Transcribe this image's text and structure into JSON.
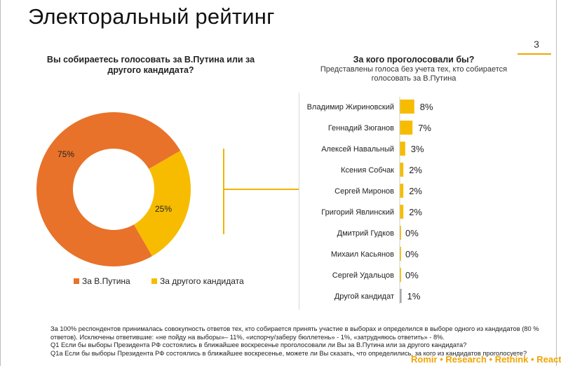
{
  "title": "Электоральный рейтинг",
  "page_number": "3",
  "colors": {
    "orange": "#e8722a",
    "yellow": "#f7bc00",
    "grey": "#9e9e9e",
    "accent": "#f0a500"
  },
  "left_question": "Вы собираетесь голосовать за В.Путина или за другого кандидата?",
  "right_question": {
    "title": "За кого проголосовали бы?",
    "subtitle": "Представлены голоса без учета тех, кто собирается голосовать за В.Путина"
  },
  "footnotes": [
    "За 100% респондентов принималась совокупность ответов тех, кто собирается принять участие в выборах и определился в выборе одного из кандидатов (80 % ответов). Исключены ответившие: «не пойду на выборы»– 11%, «испорчу/заберу бюллетень» - 1%, «затрудняюсь ответить» - 8%.",
    "Q1 Если бы выборы Президента РФ состоялись в ближайшее воскресенье проголосовали ли Вы за В.Путина или за другого кандидата?",
    "Q1a Если бы выборы Президента РФ состоялись в ближайшее воскресенье, можете ли Вы сказать, что определились, за кого из кандидатов  проголосуете?"
  ],
  "brand": {
    "parts": [
      "Romir",
      "Research",
      "Rethink",
      "React"
    ],
    "separator": "•"
  },
  "chart_data": [
    {
      "type": "pie",
      "donut": true,
      "categories": [
        "За В.Путина",
        "За другого кандидата"
      ],
      "values": [
        75,
        25
      ],
      "labels": [
        "75%",
        "25%"
      ],
      "colors": [
        "#e8722a",
        "#f7bc00"
      ],
      "legend": "bottom"
    },
    {
      "type": "bar",
      "orientation": "horizontal",
      "categories": [
        "Владимир Жириновский",
        "Геннадий Зюганов",
        "Алексей Навальный",
        "Ксения Собчак",
        "Сергей Миронов",
        "Григорий Явлинский",
        "Дмитрий Гудков",
        "Михаил Касьянов",
        "Сергей Удальцов",
        "Другой кандидат"
      ],
      "values": [
        8,
        7,
        3,
        2,
        2,
        2,
        0,
        0,
        0,
        1
      ],
      "labels": [
        "8%",
        "7%",
        "3%",
        "2%",
        "2%",
        "2%",
        "0%",
        "0%",
        "0%",
        "1%"
      ],
      "colors": [
        "#f7bc00",
        "#f7bc00",
        "#f7bc00",
        "#f7bc00",
        "#f7bc00",
        "#f7bc00",
        "#f7bc00",
        "#f7bc00",
        "#f7bc00",
        "#9e9e9e"
      ]
    }
  ]
}
